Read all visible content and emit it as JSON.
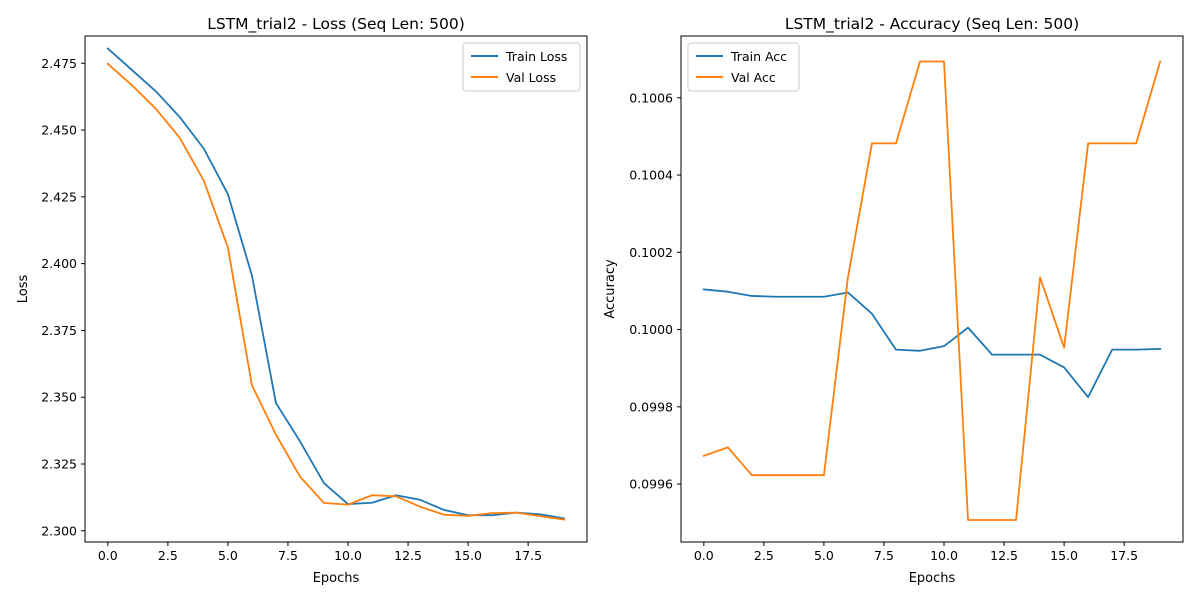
{
  "chart_data": [
    {
      "type": "line",
      "title": "LSTM_trial2 - Loss (Seq Len: 500)",
      "xlabel": "Epochs",
      "ylabel": "Loss",
      "xlim": [
        -0.95,
        19.95
      ],
      "ylim": [
        2.2958,
        2.4852
      ],
      "xticks": [
        0,
        2.5,
        5,
        7.5,
        10,
        12.5,
        15,
        17.5
      ],
      "xtick_labels": [
        "0.0",
        "2.5",
        "5.0",
        "7.5",
        "10.0",
        "12.5",
        "15.0",
        "17.5"
      ],
      "yticks": [
        2.3,
        2.325,
        2.35,
        2.375,
        2.4,
        2.425,
        2.45,
        2.475
      ],
      "ytick_labels": [
        "2.300",
        "2.325",
        "2.350",
        "2.375",
        "2.400",
        "2.425",
        "2.450",
        "2.475"
      ],
      "grid": false,
      "legend_position": "top-right",
      "x": [
        0,
        1,
        2,
        3,
        4,
        5,
        6,
        7,
        8,
        9,
        10,
        11,
        12,
        13,
        14,
        15,
        16,
        17,
        18,
        19
      ],
      "series": [
        {
          "name": "Train Loss",
          "color": "#1f77b4",
          "values": [
            2.4805,
            2.4725,
            2.4645,
            2.4548,
            2.443,
            2.426,
            2.3955,
            2.3478,
            2.3335,
            2.3178,
            2.31,
            2.3105,
            2.3133,
            2.3116,
            2.3078,
            2.3058,
            2.3058,
            2.3068,
            2.3062,
            2.3046
          ]
        },
        {
          "name": "Val Loss",
          "color": "#ff7f0e",
          "values": [
            2.4748,
            2.4668,
            2.458,
            2.447,
            2.431,
            2.406,
            2.3545,
            2.336,
            2.3203,
            2.3104,
            2.3098,
            2.3133,
            2.3129,
            2.309,
            2.306,
            2.3056,
            2.3066,
            2.3068,
            2.3055,
            2.3042
          ]
        }
      ]
    },
    {
      "type": "line",
      "title": "LSTM_trial2 - Accuracy (Seq Len: 500)",
      "xlabel": "Epochs",
      "ylabel": "Accuracy",
      "xlim": [
        -0.95,
        19.95
      ],
      "ylim": [
        0.09945,
        0.10076
      ],
      "xticks": [
        0,
        2.5,
        5,
        7.5,
        10,
        12.5,
        15,
        17.5
      ],
      "xtick_labels": [
        "0.0",
        "2.5",
        "5.0",
        "7.5",
        "10.0",
        "12.5",
        "15.0",
        "17.5"
      ],
      "yticks": [
        0.0996,
        0.0998,
        0.1,
        0.1002,
        0.1004,
        0.1006
      ],
      "ytick_labels": [
        "0.0996",
        "0.0998",
        "0.1000",
        "0.1002",
        "0.1004",
        "0.1006"
      ],
      "grid": false,
      "legend_position": "top-left",
      "x": [
        0,
        1,
        2,
        3,
        4,
        5,
        6,
        7,
        8,
        9,
        10,
        11,
        12,
        13,
        14,
        15,
        16,
        17,
        18,
        19
      ],
      "series": [
        {
          "name": "Train Acc",
          "color": "#1f77b4",
          "values": [
            0.100104,
            0.100098,
            0.100087,
            0.100085,
            0.100085,
            0.100085,
            0.100096,
            0.100041,
            0.099948,
            0.099945,
            0.099957,
            0.100005,
            0.099935,
            0.099935,
            0.099935,
            0.099902,
            0.099825,
            0.099948,
            0.099948,
            0.09995
          ]
        },
        {
          "name": "Val Acc",
          "color": "#ff7f0e",
          "values": [
            0.099673,
            0.099695,
            0.099623,
            0.099623,
            0.099623,
            0.099623,
            0.100135,
            0.100482,
            0.100482,
            0.100694,
            0.100694,
            0.099507,
            0.099507,
            0.099507,
            0.100135,
            0.099953,
            0.100482,
            0.100482,
            0.100482,
            0.100694
          ]
        }
      ]
    }
  ]
}
